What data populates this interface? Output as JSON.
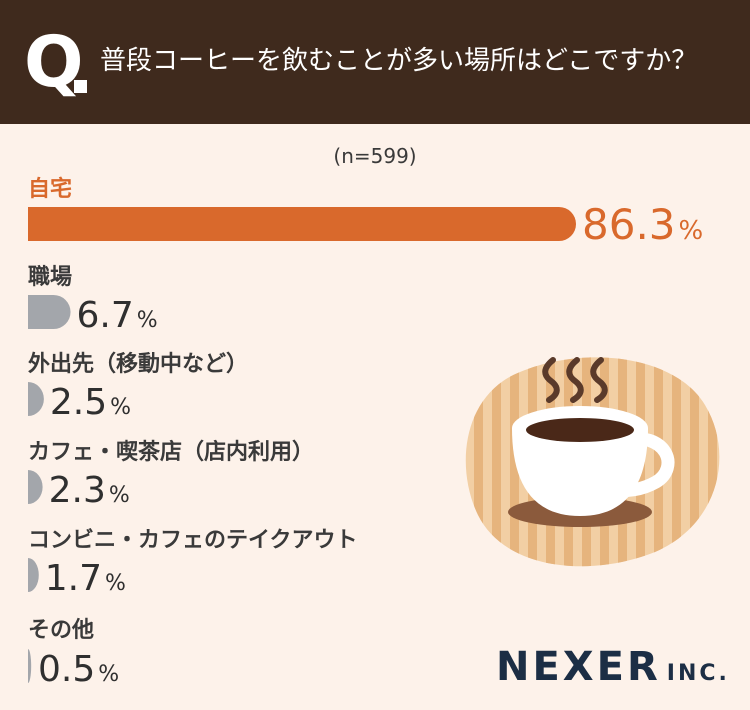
{
  "header": {
    "q_mark": "Q",
    "question": "普段コーヒーを飲むことが多い場所はどこですか？"
  },
  "sample_size": "(n=599)",
  "brand": {
    "name": "NEXER",
    "suffix": "INC."
  },
  "colors": {
    "accent": "#d9692c",
    "bar": "#a3a6ab",
    "header_bg": "#3f2a1d",
    "background": "#fdf2ea"
  },
  "icons": [
    "coffee-cup-icon",
    "steam-icon"
  ],
  "chart_data": {
    "type": "bar",
    "orientation": "horizontal",
    "title": "",
    "xlabel": "",
    "ylabel": "",
    "unit": "%",
    "categories": [
      "自宅",
      "職場",
      "外出先（移動中など）",
      "カフェ・喫茶店（店内利用）",
      "コンビニ・カフェのテイクアウト",
      "その他"
    ],
    "values": [
      86.3,
      6.7,
      2.5,
      2.3,
      1.7,
      0.5
    ],
    "value_labels": [
      "86.3",
      "6.7",
      "2.5",
      "2.3",
      "1.7",
      "0.5"
    ],
    "highlight_index": 0,
    "xlim": [
      0,
      100
    ]
  }
}
